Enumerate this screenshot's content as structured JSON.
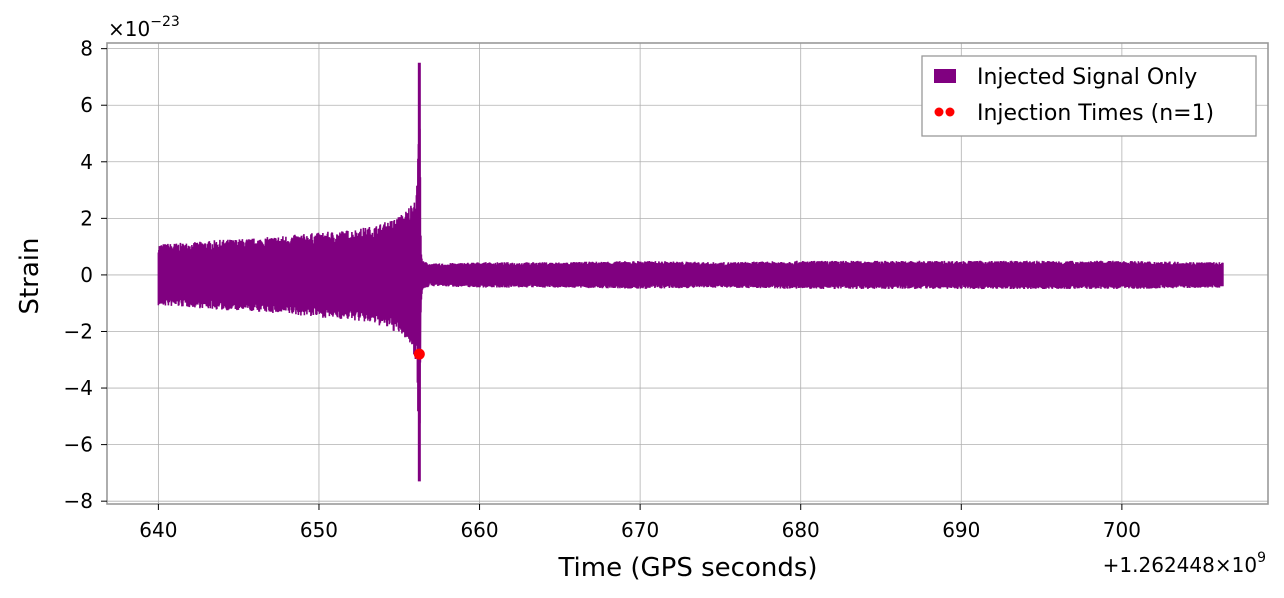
{
  "chart_data": {
    "type": "line",
    "xlabel": "Time (GPS seconds)",
    "ylabel": "Strain",
    "x_offset_text": "+1.262448×10^9",
    "y_scale_text": "×10^−23",
    "xlim": [
      636.8,
      709.1
    ],
    "ylim": [
      -8.1,
      8.2
    ],
    "xticks": [
      640,
      650,
      660,
      670,
      680,
      690,
      700
    ],
    "xtick_labels": [
      "640",
      "650",
      "660",
      "670",
      "680",
      "690",
      "700"
    ],
    "yticks": [
      -8,
      -6,
      -4,
      -2,
      0,
      2,
      4,
      6,
      8
    ],
    "ytick_labels": [
      "−8",
      "−6",
      "−4",
      "−2",
      "0",
      "2",
      "4",
      "6",
      "8"
    ],
    "grid": true,
    "legend_position": "top-right",
    "series": [
      {
        "name": "Injected Signal Only",
        "kind": "line",
        "color": "#800080",
        "envelope": {
          "x": [
            640.0,
            642.0,
            644.0,
            646.0,
            648.0,
            650.0,
            652.0,
            653.5,
            654.5,
            655.3,
            655.8,
            656.1,
            656.25,
            656.3,
            656.35,
            656.45,
            657.0,
            660.0,
            665.0,
            670.0,
            675.0,
            680.0,
            685.0,
            690.0,
            695.0,
            700.0,
            706.3
          ],
          "upper": [
            1.1,
            1.15,
            1.25,
            1.3,
            1.4,
            1.5,
            1.6,
            1.75,
            1.95,
            2.2,
            2.6,
            3.2,
            7.5,
            5.0,
            1.2,
            0.5,
            0.4,
            0.45,
            0.45,
            0.5,
            0.45,
            0.5,
            0.5,
            0.5,
            0.5,
            0.5,
            0.45
          ],
          "lower": [
            -1.1,
            -1.15,
            -1.25,
            -1.3,
            -1.4,
            -1.5,
            -1.6,
            -1.75,
            -1.95,
            -2.2,
            -2.6,
            -3.2,
            -7.3,
            -5.0,
            -1.2,
            -0.5,
            -0.4,
            -0.45,
            -0.45,
            -0.5,
            -0.45,
            -0.5,
            -0.5,
            -0.5,
            -0.5,
            -0.5,
            -0.45
          ]
        }
      },
      {
        "name": "Injection Times (n=1)",
        "kind": "scatter",
        "color": "#ff0000",
        "points": [
          {
            "x": 656.25,
            "y": -2.8
          }
        ]
      }
    ]
  }
}
